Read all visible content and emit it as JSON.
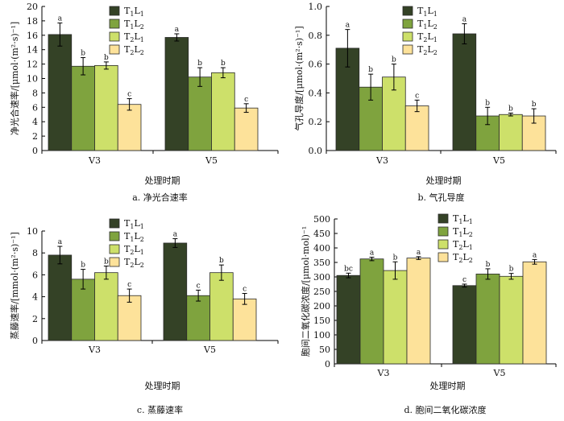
{
  "series_styles": [
    {
      "label_html": "T<tspan dy=\"3\" font-size=\"8\">1</tspan><tspan dy=\"-3\">L</tspan><tspan dy=\"3\" font-size=\"8\">1</tspan>",
      "color": "#344226"
    },
    {
      "label_html": "T<tspan dy=\"3\" font-size=\"8\">1</tspan><tspan dy=\"-3\">L</tspan><tspan dy=\"3\" font-size=\"8\">2</tspan>",
      "color": "#7fa33e"
    },
    {
      "label_html": "T<tspan dy=\"3\" font-size=\"8\">2</tspan><tspan dy=\"-3\">L</tspan><tspan dy=\"3\" font-size=\"8\">1</tspan>",
      "color": "#cde06a"
    },
    {
      "label_html": "T<tspan dy=\"3\" font-size=\"8\">2</tspan><tspan dy=\"-3\">L</tspan><tspan dy=\"3\" font-size=\"8\">2</tspan>",
      "color": "#fde29a"
    }
  ],
  "chart_data": [
    {
      "type": "bar",
      "caption": "a.  净光合速率",
      "ylabel": "净光合速率/[μmol·(m²·s)⁻¹]",
      "xlabel": "处理时期",
      "categories": [
        "V3",
        "V5"
      ],
      "ylim": [
        0,
        20
      ],
      "yticks": [
        0,
        2,
        4,
        6,
        8,
        10,
        12,
        14,
        16,
        18,
        20
      ],
      "tick_decimals": 0,
      "legend_position": "top-right",
      "series": [
        {
          "name": "T1L1",
          "values": [
            16.1,
            15.7
          ],
          "errors": [
            1.6,
            0.5
          ],
          "letters": [
            "a",
            "a"
          ]
        },
        {
          "name": "T1L2",
          "values": [
            11.7,
            10.2
          ],
          "errors": [
            1.2,
            1.3
          ],
          "letters": [
            "b",
            "b"
          ]
        },
        {
          "name": "T2L1",
          "values": [
            11.8,
            10.8
          ],
          "errors": [
            0.5,
            0.7
          ],
          "letters": [
            "b",
            "b"
          ]
        },
        {
          "name": "T2L2",
          "values": [
            6.4,
            5.9
          ],
          "errors": [
            0.8,
            0.6
          ],
          "letters": [
            "c",
            "c"
          ]
        }
      ]
    },
    {
      "type": "bar",
      "caption": "b.  气孔导度",
      "ylabel": "气孔导度/[μmol·(m²·s)⁻¹]",
      "xlabel": "处理时期",
      "categories": [
        "V3",
        "V5"
      ],
      "ylim": [
        0,
        1.0
      ],
      "yticks": [
        0,
        0.2,
        0.4,
        0.6,
        0.8,
        1.0
      ],
      "tick_decimals": 1,
      "legend_position": "top-right",
      "series": [
        {
          "name": "T1L1",
          "values": [
            0.71,
            0.81
          ],
          "errors": [
            0.13,
            0.07
          ],
          "letters": [
            "a",
            "a"
          ]
        },
        {
          "name": "T1L2",
          "values": [
            0.44,
            0.24
          ],
          "errors": [
            0.09,
            0.06
          ],
          "letters": [
            "b",
            "b"
          ]
        },
        {
          "name": "T2L1",
          "values": [
            0.51,
            0.25
          ],
          "errors": [
            0.09,
            0.01
          ],
          "letters": [
            "b",
            "b"
          ]
        },
        {
          "name": "T2L2",
          "values": [
            0.31,
            0.24
          ],
          "errors": [
            0.04,
            0.05
          ],
          "letters": [
            "c",
            "b"
          ]
        }
      ]
    },
    {
      "type": "bar",
      "caption": "c.  蒸藤速率",
      "ylabel": "蒸藤速率/[mmol·(m²·s)⁻¹]",
      "xlabel": "处理时期",
      "categories": [
        "V3",
        "V5"
      ],
      "ylim": [
        0,
        10
      ],
      "yticks": [
        0,
        2,
        4,
        6,
        8,
        10
      ],
      "tick_decimals": 0,
      "legend_position": "top-right",
      "series": [
        {
          "name": "T1L1",
          "values": [
            7.8,
            8.9
          ],
          "errors": [
            0.8,
            0.4
          ],
          "letters": [
            "a",
            "a"
          ]
        },
        {
          "name": "T1L2",
          "values": [
            5.6,
            4.1
          ],
          "errors": [
            0.9,
            0.5
          ],
          "letters": [
            "b",
            "c"
          ]
        },
        {
          "name": "T2L1",
          "values": [
            6.2,
            6.2
          ],
          "errors": [
            0.6,
            0.7
          ],
          "letters": [
            "b",
            "b"
          ]
        },
        {
          "name": "T2L2",
          "values": [
            4.1,
            3.8
          ],
          "errors": [
            0.6,
            0.5
          ],
          "letters": [
            "c",
            "c"
          ]
        }
      ]
    },
    {
      "type": "bar",
      "caption": "d.  胞间二氧化碳浓度",
      "ylabel": "胞间二氧化碳浓度/[μmol·mol)⁻¹",
      "xlabel": "处理时期",
      "categories": [
        "V3",
        "V5"
      ],
      "ylim": [
        0,
        500
      ],
      "yticks": [
        0,
        50,
        100,
        150,
        200,
        250,
        300,
        350,
        400,
        450,
        500
      ],
      "tick_decimals": 0,
      "legend_position": "top-left",
      "series": [
        {
          "name": "T1L1",
          "values": [
            305,
            270
          ],
          "errors": [
            8,
            5
          ],
          "letters": [
            "bc",
            "c"
          ]
        },
        {
          "name": "T1L2",
          "values": [
            362,
            310
          ],
          "errors": [
            6,
            18
          ],
          "letters": [
            "a",
            "b"
          ]
        },
        {
          "name": "T2L1",
          "values": [
            322,
            302
          ],
          "errors": [
            30,
            10
          ],
          "letters": [
            "b",
            "b"
          ]
        },
        {
          "name": "T2L2",
          "values": [
            365,
            352
          ],
          "errors": [
            5,
            8
          ],
          "letters": [
            "a",
            "a"
          ]
        }
      ]
    }
  ]
}
